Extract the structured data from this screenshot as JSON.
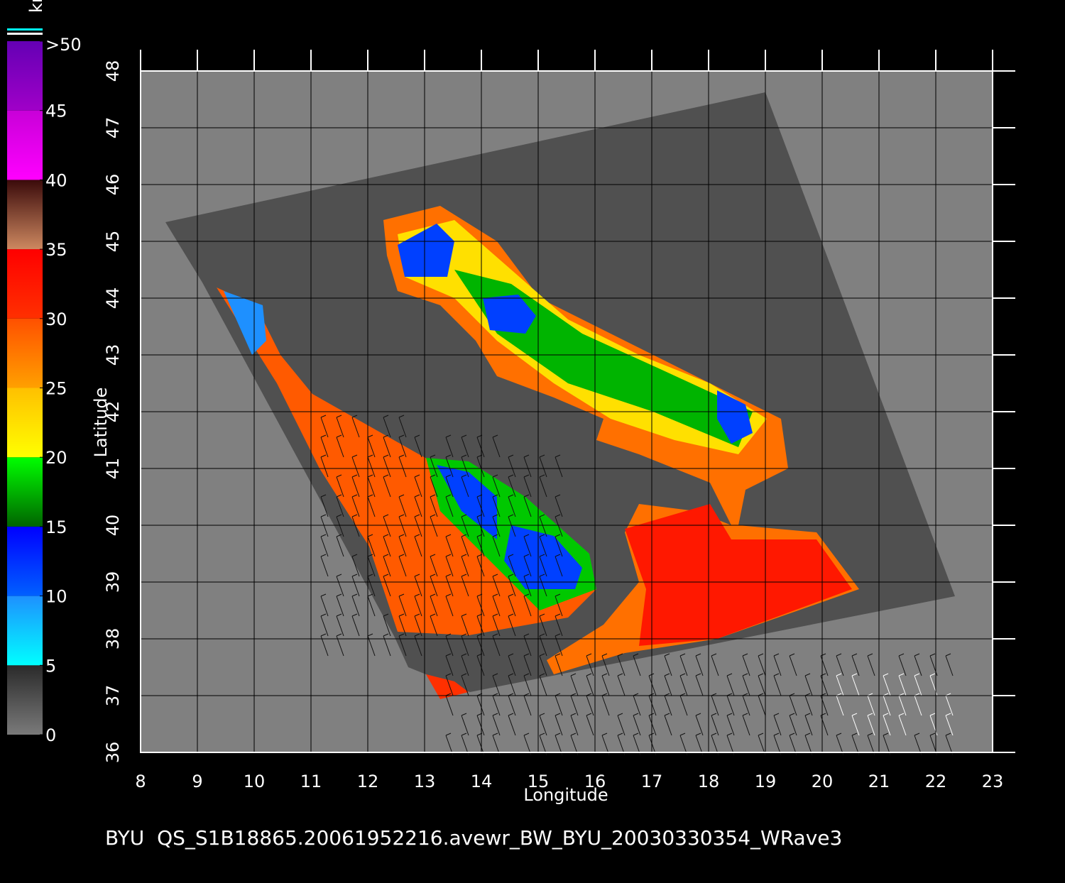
{
  "chart_data": {
    "type": "map",
    "footer": "BYU  QS_S1B18865.20061952216.avewr_BW_BYU_20030330354_WRave3",
    "x_label": "Longitude",
    "y_label": "Latitude",
    "xlim": [
      8,
      23
    ],
    "ylim": [
      36,
      48
    ],
    "xticks": [
      8,
      9,
      10,
      11,
      12,
      13,
      14,
      15,
      16,
      17,
      18,
      19,
      20,
      21,
      22,
      23
    ],
    "yticks": [
      36,
      37,
      38,
      39,
      40,
      41,
      42,
      43,
      44,
      45,
      46,
      47,
      48
    ],
    "grid": true,
    "colorbar": {
      "label": "kn",
      "ticks": [
        0,
        5,
        10,
        15,
        20,
        25,
        30,
        35,
        40,
        45,
        {
          "value": 50,
          "label": ">50"
        }
      ],
      "colors": [
        [
          "#7a7a7a",
          "#2a2a2a"
        ],
        [
          "#00ffff",
          "#1e90ff"
        ],
        [
          "#0060ff",
          "#0000ff"
        ],
        [
          "#006400",
          "#00ff00"
        ],
        [
          "#ffff00",
          "#ffc000"
        ],
        [
          "#ffa000",
          "#ff5000"
        ],
        [
          "#ff3000",
          "#ff0000"
        ],
        [
          "#cd8860",
          "#3a0a0a"
        ],
        [
          "#ff00ff",
          "#c800d8"
        ],
        [
          "#a000c8",
          "#6400b4"
        ]
      ]
    }
  }
}
